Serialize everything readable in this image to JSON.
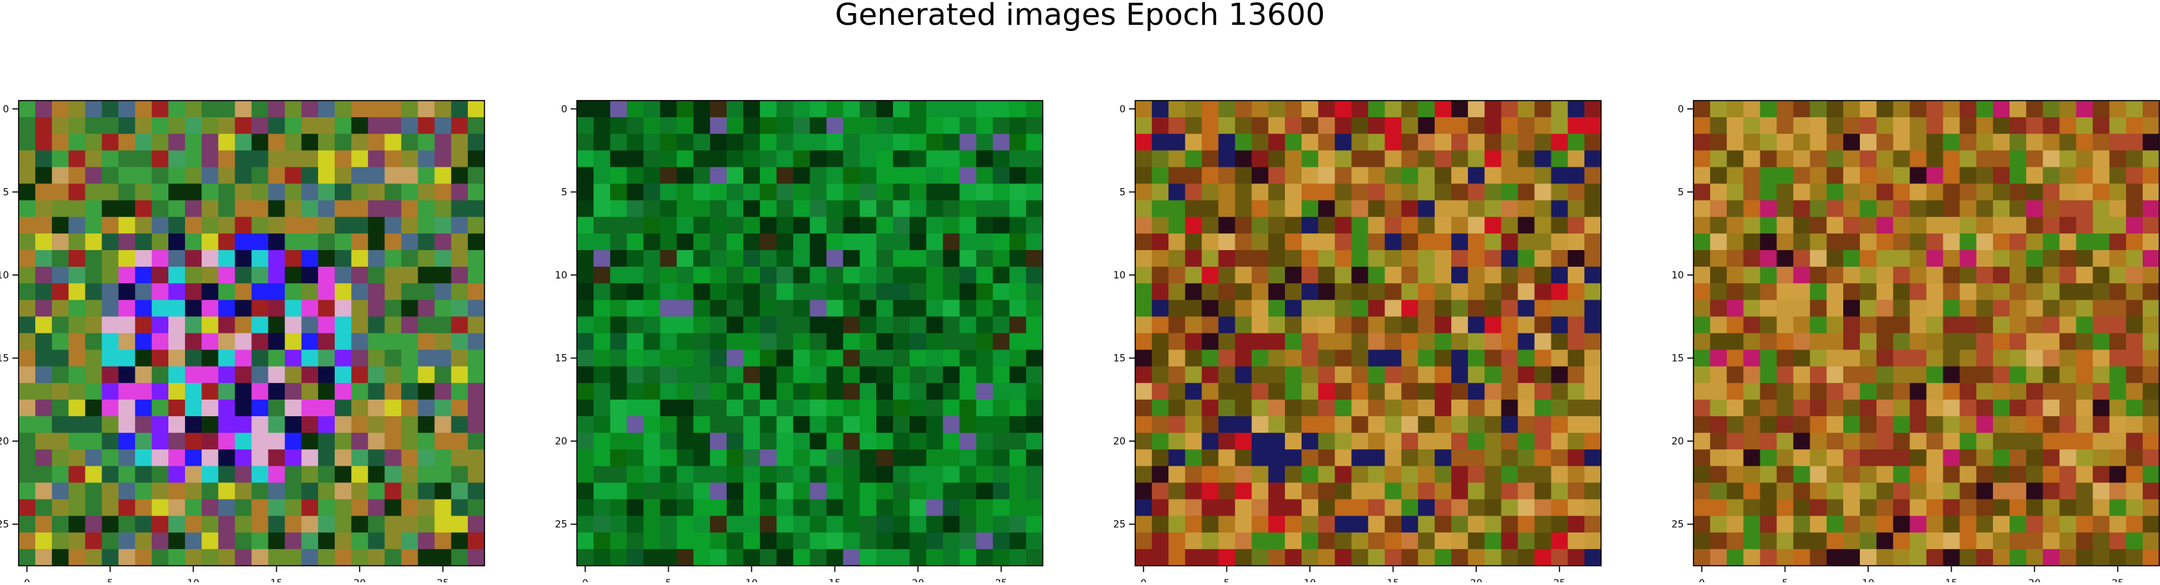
{
  "figure": {
    "title": "Generated images Epoch 13600"
  },
  "chart_data": [
    {
      "type": "heatmap",
      "description": "28x28 RGB generated image, multicolored noise with blue/purple/magenta center",
      "grid_size": [
        28,
        28
      ],
      "xlim": [
        -0.5,
        27.5
      ],
      "ylim": [
        27.5,
        -0.5
      ],
      "xticks": [
        0,
        5,
        10,
        15,
        20,
        25
      ],
      "yticks": [
        0,
        5,
        10,
        15,
        20,
        25
      ],
      "palette": [
        "#6b8f2a",
        "#2e7d32",
        "#8a8a2a",
        "#1a5c3a",
        "#b07a2a",
        "#3aa040",
        "#7a3a6a",
        "#1e1eff",
        "#7a1eff",
        "#e040e0",
        "#0a0a40",
        "#20d0d0",
        "#e0b0d0",
        "#8a1a3a",
        "#d0d020",
        "#0a300a",
        "#c8a060",
        "#4a6a8a",
        "#a02020",
        "#40a060"
      ]
    },
    {
      "type": "heatmap",
      "description": "28x28 RGB generated image, mostly green shades with dark patches",
      "grid_size": [
        28,
        28
      ],
      "xlim": [
        -0.5,
        27.5
      ],
      "ylim": [
        27.5,
        -0.5
      ],
      "xticks": [
        0,
        5,
        10,
        15,
        20,
        25
      ],
      "yticks": [
        0,
        5,
        10,
        15,
        20,
        25
      ],
      "palette": [
        "#0a8a1e",
        "#067018",
        "#0aa02a",
        "#045a14",
        "#0d7a28",
        "#0b9430",
        "#03400e",
        "#0e6a20",
        "#10a838",
        "#02300a",
        "#1a7a3a",
        "#0a5a2a",
        "#3a2a10",
        "#6a5aa0",
        "#18b040",
        "#0a6a0a"
      ]
    },
    {
      "type": "heatmap",
      "description": "28x28 RGB generated image, orange/olive/brown noise with dark red and navy specks",
      "grid_size": [
        28,
        28
      ],
      "xlim": [
        -0.5,
        27.5
      ],
      "ylim": [
        27.5,
        -0.5
      ],
      "xticks": [
        0,
        5,
        10,
        15,
        20,
        25
      ],
      "yticks": [
        0,
        5,
        10,
        15,
        20,
        25
      ],
      "palette": [
        "#b07a1e",
        "#8a7a1a",
        "#c89a3a",
        "#6a5a10",
        "#a05a1a",
        "#9a9a2a",
        "#c06a1a",
        "#7a3a10",
        "#d0a040",
        "#5a4a0a",
        "#8a1a1a",
        "#b04a2a",
        "#3a8a1a",
        "#1a1a60",
        "#2a0a1a",
        "#d8b060",
        "#c87a3a",
        "#a08a20",
        "#6a7a1a",
        "#d01020"
      ]
    },
    {
      "type": "heatmap",
      "description": "28x28 RGB generated image, orange/olive/brown noise with dark specks",
      "grid_size": [
        28,
        28
      ],
      "xlim": [
        -0.5,
        27.5
      ],
      "ylim": [
        27.5,
        -0.5
      ],
      "xticks": [
        0,
        5,
        10,
        15,
        20,
        25
      ],
      "yticks": [
        0,
        5,
        10,
        15,
        20,
        25
      ],
      "palette": [
        "#b07a1e",
        "#9a7a1a",
        "#c89a3a",
        "#6a5a10",
        "#a05a1a",
        "#a09a2a",
        "#c06a1a",
        "#7a3a10",
        "#d0a040",
        "#5a4a0a",
        "#8a2a1a",
        "#b04a2a",
        "#3a8a1a",
        "#2a0a1a",
        "#d8b060",
        "#c87a3a",
        "#a08a20",
        "#6a7a1a",
        "#c01a6a"
      ]
    }
  ]
}
